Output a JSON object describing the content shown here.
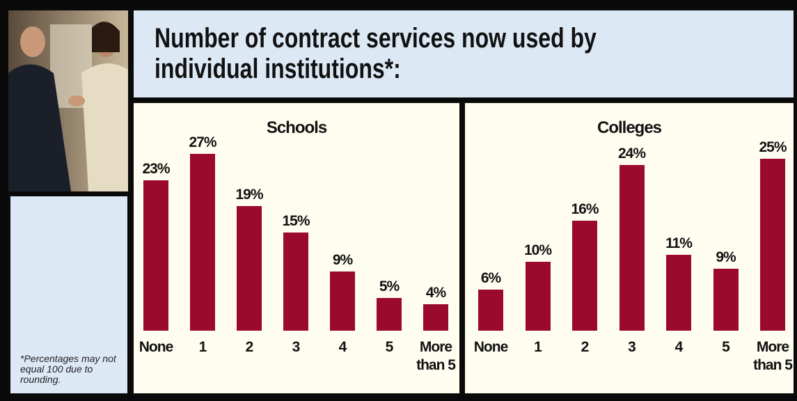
{
  "title": "Number of contract services now used by individual institutions*:",
  "footnote": "*Percentages may not equal 100 due to rounding.",
  "chart_data": [
    {
      "type": "bar",
      "title": "Schools",
      "color": "#9b0a2a",
      "categories": [
        "None",
        "1",
        "2",
        "3",
        "4",
        "5",
        "More than 5"
      ],
      "values": [
        23,
        27,
        19,
        15,
        9,
        5,
        4
      ],
      "value_labels": [
        "23%",
        "27%",
        "19%",
        "15%",
        "9%",
        "5%",
        "4%"
      ]
    },
    {
      "type": "bar",
      "title": "Colleges",
      "color": "#9b0a2a",
      "categories": [
        "None",
        "1",
        "2",
        "3",
        "4",
        "5",
        "More than 5"
      ],
      "values": [
        6,
        10,
        16,
        24,
        11,
        9,
        25
      ],
      "value_labels": [
        "6%",
        "10%",
        "16%",
        "24%",
        "11%",
        "9%",
        "25%"
      ]
    }
  ]
}
